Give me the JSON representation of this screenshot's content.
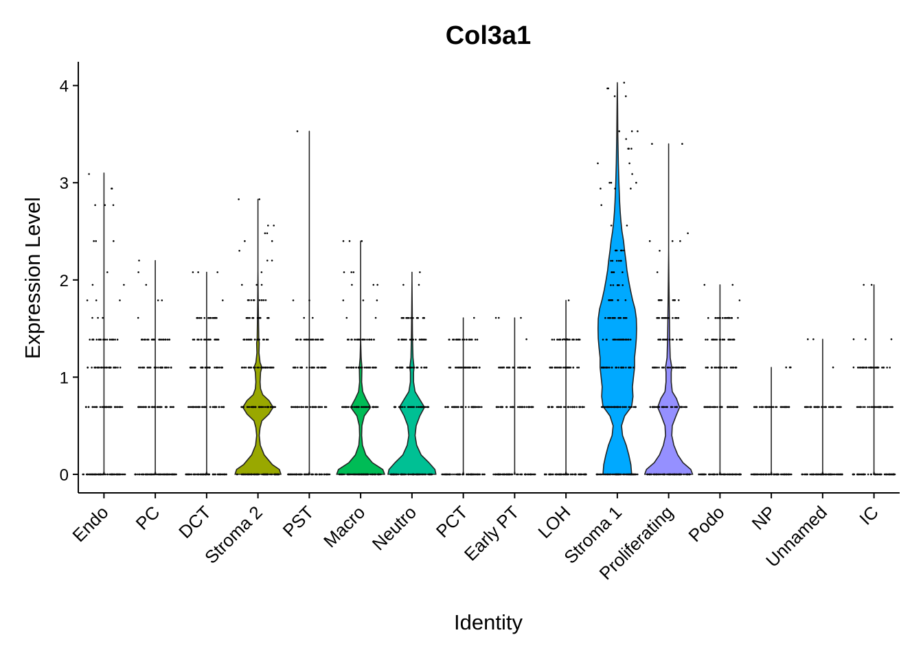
{
  "chart_data": {
    "type": "violin",
    "title": "Col3a1",
    "xlabel": "Identity",
    "ylabel": "Expression Level",
    "ylim": [
      -0.2,
      4.23
    ],
    "yticks": [
      0,
      1,
      2,
      3,
      4
    ],
    "grid": false,
    "legend": "none",
    "point_levels": [
      0,
      0.693,
      1.099,
      1.386,
      1.609,
      1.792,
      1.946,
      2.079,
      2.197,
      2.303,
      2.398,
      2.485,
      2.565
    ],
    "categories": [
      {
        "name": "Endo",
        "color": "#F8766D",
        "max": 3.1,
        "wide_levels": 4,
        "density": [
          [
            0,
            0.02
          ],
          [
            0.03,
            0.0
          ]
        ],
        "outliers": [
          1.61,
          1.79,
          1.95,
          2.08,
          2.4,
          2.77,
          2.94,
          3.09
        ]
      },
      {
        "name": "PC",
        "color": "#E38900",
        "max": 2.2,
        "wide_levels": 4,
        "density": [
          [
            0,
            0.02
          ],
          [
            0.03,
            0.0
          ]
        ],
        "outliers": [
          1.61,
          1.79,
          1.95,
          2.08,
          2.2
        ]
      },
      {
        "name": "DCT",
        "color": "#C49A00",
        "max": 2.08,
        "wide_levels": 5,
        "density": [
          [
            0,
            0.02
          ],
          [
            0.03,
            0.0
          ]
        ],
        "outliers": [
          1.79,
          2.08
        ]
      },
      {
        "name": "Stroma 2",
        "color": "#99A800",
        "max": 2.83,
        "wide_levels": 6,
        "density": [
          [
            0,
            0.88
          ],
          [
            0.05,
            0.82
          ],
          [
            0.1,
            0.55
          ],
          [
            0.2,
            0.24
          ],
          [
            0.3,
            0.09
          ],
          [
            0.4,
            0.05
          ],
          [
            0.48,
            0.08
          ],
          [
            0.55,
            0.15
          ],
          [
            0.62,
            0.42
          ],
          [
            0.69,
            0.58
          ],
          [
            0.76,
            0.42
          ],
          [
            0.82,
            0.18
          ],
          [
            0.88,
            0.1
          ],
          [
            0.95,
            0.08
          ],
          [
            1.05,
            0.1
          ],
          [
            1.1,
            0.15
          ],
          [
            1.15,
            0.08
          ],
          [
            1.25,
            0.04
          ],
          [
            1.35,
            0.05
          ],
          [
            1.4,
            0.03
          ],
          [
            1.6,
            0.02
          ],
          [
            1.8,
            0.01
          ],
          [
            2.1,
            0.0
          ]
        ],
        "outliers": [
          1.95,
          2.08,
          2.2,
          2.3,
          2.4,
          2.48,
          2.56,
          2.83
        ]
      },
      {
        "name": "PST",
        "color": "#53B400",
        "max": 3.53,
        "wide_levels": 4,
        "density": [
          [
            0,
            0.02
          ],
          [
            0.03,
            0.0
          ]
        ],
        "outliers": [
          1.61,
          1.79,
          3.53
        ]
      },
      {
        "name": "Macro",
        "color": "#00BC56",
        "max": 2.4,
        "wide_levels": 4,
        "density": [
          [
            0,
            0.92
          ],
          [
            0.05,
            0.85
          ],
          [
            0.12,
            0.45
          ],
          [
            0.2,
            0.2
          ],
          [
            0.3,
            0.07
          ],
          [
            0.4,
            0.04
          ],
          [
            0.5,
            0.05
          ],
          [
            0.6,
            0.14
          ],
          [
            0.69,
            0.38
          ],
          [
            0.78,
            0.2
          ],
          [
            0.85,
            0.08
          ],
          [
            0.95,
            0.04
          ],
          [
            1.1,
            0.05
          ],
          [
            1.2,
            0.02
          ],
          [
            1.4,
            0.0
          ]
        ],
        "outliers": [
          1.61,
          1.79,
          1.95,
          2.08,
          2.4
        ]
      },
      {
        "name": "Neutro",
        "color": "#00C094",
        "max": 2.08,
        "wide_levels": 5,
        "density": [
          [
            0,
            0.92
          ],
          [
            0.05,
            0.88
          ],
          [
            0.12,
            0.65
          ],
          [
            0.2,
            0.35
          ],
          [
            0.3,
            0.18
          ],
          [
            0.4,
            0.12
          ],
          [
            0.5,
            0.16
          ],
          [
            0.6,
            0.3
          ],
          [
            0.69,
            0.48
          ],
          [
            0.78,
            0.28
          ],
          [
            0.85,
            0.12
          ],
          [
            0.95,
            0.06
          ],
          [
            1.05,
            0.06
          ],
          [
            1.1,
            0.08
          ],
          [
            1.2,
            0.04
          ],
          [
            1.3,
            0.03
          ],
          [
            1.45,
            0.02
          ],
          [
            1.7,
            0.01
          ],
          [
            2.0,
            0.0
          ]
        ],
        "outliers": [
          1.95,
          2.08
        ]
      },
      {
        "name": "PCT",
        "color": "#00BFC4",
        "max": 1.61,
        "wide_levels": 4,
        "density": [
          [
            0,
            0.02
          ],
          [
            0.03,
            0.0
          ]
        ],
        "outliers": [
          1.61
        ]
      },
      {
        "name": "Early PT",
        "color": "#00B6EB",
        "max": 1.61,
        "wide_levels": 3,
        "density": [
          [
            0,
            0.02
          ],
          [
            0.03,
            0.0
          ]
        ],
        "outliers": [
          1.1,
          1.39,
          1.61
        ]
      },
      {
        "name": "LOH",
        "color": "#06A4FF",
        "max": 1.79,
        "wide_levels": 4,
        "density": [
          [
            0,
            0.02
          ],
          [
            0.03,
            0.0
          ]
        ],
        "outliers": [
          1.39,
          1.79
        ]
      },
      {
        "name": "Stroma 1",
        "color": "#00A9FF",
        "max": 4.03,
        "wide_levels": 10,
        "density": [
          [
            0,
            0.55
          ],
          [
            0.1,
            0.52
          ],
          [
            0.2,
            0.44
          ],
          [
            0.3,
            0.34
          ],
          [
            0.4,
            0.2
          ],
          [
            0.5,
            0.16
          ],
          [
            0.6,
            0.28
          ],
          [
            0.7,
            0.55
          ],
          [
            0.8,
            0.6
          ],
          [
            0.9,
            0.58
          ],
          [
            1.0,
            0.62
          ],
          [
            1.1,
            0.66
          ],
          [
            1.2,
            0.66
          ],
          [
            1.3,
            0.7
          ],
          [
            1.4,
            0.73
          ],
          [
            1.5,
            0.74
          ],
          [
            1.6,
            0.73
          ],
          [
            1.7,
            0.68
          ],
          [
            1.8,
            0.58
          ],
          [
            1.9,
            0.5
          ],
          [
            2.0,
            0.43
          ],
          [
            2.1,
            0.37
          ],
          [
            2.2,
            0.33
          ],
          [
            2.3,
            0.28
          ],
          [
            2.4,
            0.24
          ],
          [
            2.5,
            0.18
          ],
          [
            2.6,
            0.14
          ],
          [
            2.7,
            0.11
          ],
          [
            2.8,
            0.09
          ],
          [
            3.0,
            0.06
          ],
          [
            3.2,
            0.04
          ],
          [
            3.5,
            0.02
          ],
          [
            3.8,
            0.01
          ],
          [
            4.03,
            0.0
          ]
        ],
        "outliers": [
          2.56,
          2.77,
          2.94,
          3.0,
          3.09,
          3.2,
          3.35,
          3.45,
          3.53,
          3.89,
          3.97,
          4.03
        ]
      },
      {
        "name": "Proliferating",
        "color": "#9590FF",
        "max": 3.4,
        "wide_levels": 6,
        "density": [
          [
            0,
            0.92
          ],
          [
            0.05,
            0.85
          ],
          [
            0.12,
            0.55
          ],
          [
            0.2,
            0.35
          ],
          [
            0.3,
            0.2
          ],
          [
            0.4,
            0.12
          ],
          [
            0.5,
            0.14
          ],
          [
            0.6,
            0.28
          ],
          [
            0.69,
            0.42
          ],
          [
            0.78,
            0.3
          ],
          [
            0.85,
            0.14
          ],
          [
            0.95,
            0.1
          ],
          [
            1.05,
            0.1
          ],
          [
            1.1,
            0.12
          ],
          [
            1.2,
            0.06
          ],
          [
            1.3,
            0.05
          ],
          [
            1.4,
            0.04
          ],
          [
            1.6,
            0.03
          ],
          [
            1.8,
            0.02
          ],
          [
            2.0,
            0.01
          ],
          [
            2.3,
            0.0
          ]
        ],
        "outliers": [
          2.08,
          2.3,
          2.4,
          2.48,
          3.4
        ]
      },
      {
        "name": "Podo",
        "color": "#DB72FB",
        "max": 1.95,
        "wide_levels": 5,
        "density": [
          [
            0,
            0.02
          ],
          [
            0.03,
            0.0
          ]
        ],
        "outliers": [
          1.61,
          1.79,
          1.95
        ]
      },
      {
        "name": "NP",
        "color": "#F564E3",
        "max": 1.1,
        "wide_levels": 2,
        "density": [
          [
            0,
            0.02
          ],
          [
            0.03,
            0.0
          ]
        ],
        "outliers": [
          1.1
        ]
      },
      {
        "name": "Unnamed",
        "color": "#FF61C3",
        "max": 1.39,
        "wide_levels": 2,
        "density": [
          [
            0,
            0.02
          ],
          [
            0.03,
            0.0
          ]
        ],
        "outliers": [
          1.1,
          1.39
        ]
      },
      {
        "name": "IC",
        "color": "#FF6C91",
        "max": 1.95,
        "wide_levels": 3,
        "density": [
          [
            0,
            0.02
          ],
          [
            0.03,
            0.0
          ]
        ],
        "outliers": [
          1.1,
          1.39,
          1.95
        ]
      }
    ]
  }
}
